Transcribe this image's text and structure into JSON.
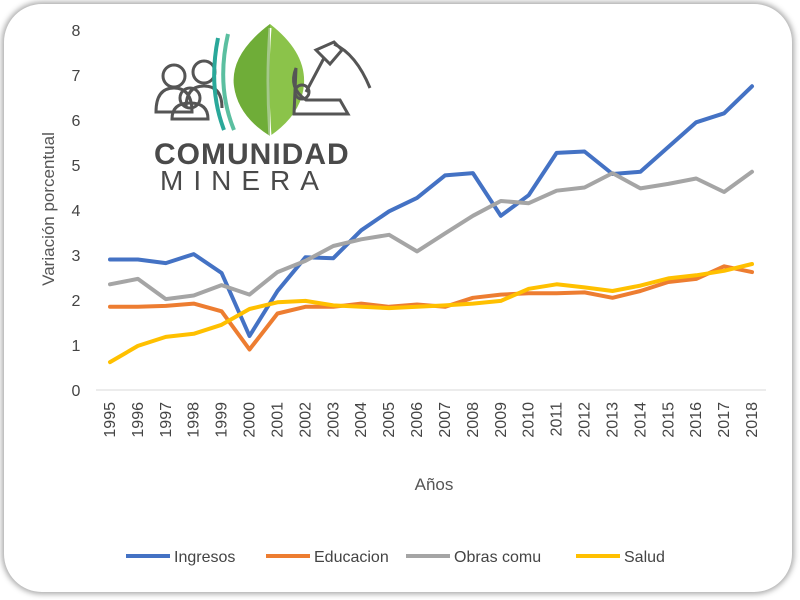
{
  "logo": {
    "line1": "COMUNIDAD",
    "line2": "MINERA",
    "colors": {
      "leaf": "#8bc34a",
      "leaf_dark": "#5a9a2a",
      "teal": "#2aa89a",
      "outline": "#555555"
    },
    "icons": [
      "people-icon",
      "leaf-icon",
      "pickaxe-icon"
    ]
  },
  "chart_data": {
    "type": "line",
    "title": "",
    "xlabel": "Años",
    "ylabel": "Variación porcentual",
    "ylim": [
      0,
      8
    ],
    "yticks": [
      0,
      1,
      2,
      3,
      4,
      5,
      6,
      7,
      8
    ],
    "grid": false,
    "legend_position": "bottom",
    "categories": [
      "1995",
      "1996",
      "1997",
      "1998",
      "1999",
      "2000",
      "2001",
      "2002",
      "2003",
      "2004",
      "2005",
      "2006",
      "2007",
      "2008",
      "2009",
      "2010",
      "2011",
      "2012",
      "2013",
      "2014",
      "2015",
      "2016",
      "2017",
      "2018"
    ],
    "series": [
      {
        "name": "Ingresos",
        "color": "#4472c4",
        "values": [
          2.9,
          2.9,
          2.82,
          3.02,
          2.6,
          1.2,
          2.2,
          2.95,
          2.93,
          3.55,
          3.97,
          4.27,
          4.77,
          4.82,
          3.87,
          4.33,
          5.27,
          5.3,
          4.8,
          4.85,
          5.4,
          5.95,
          6.15,
          6.75
        ]
      },
      {
        "name": "Educacion",
        "color": "#ed7d31",
        "values": [
          1.85,
          1.85,
          1.87,
          1.92,
          1.75,
          0.9,
          1.7,
          1.85,
          1.85,
          1.92,
          1.85,
          1.9,
          1.85,
          2.05,
          2.12,
          2.15,
          2.15,
          2.17,
          2.05,
          2.2,
          2.4,
          2.47,
          2.75,
          2.62
        ]
      },
      {
        "name": "Obras comu",
        "color": "#a5a5a5",
        "values": [
          2.35,
          2.47,
          2.02,
          2.1,
          2.33,
          2.12,
          2.62,
          2.87,
          3.2,
          3.35,
          3.45,
          3.08,
          3.48,
          3.87,
          4.2,
          4.15,
          4.43,
          4.5,
          4.82,
          4.48,
          4.58,
          4.7,
          4.4,
          4.85
        ]
      },
      {
        "name": "Salud",
        "color": "#ffc000",
        "values": [
          0.62,
          0.98,
          1.18,
          1.25,
          1.45,
          1.8,
          1.95,
          1.98,
          1.88,
          1.85,
          1.82,
          1.85,
          1.88,
          1.92,
          1.98,
          2.25,
          2.35,
          2.28,
          2.2,
          2.32,
          2.48,
          2.55,
          2.65,
          2.8
        ]
      }
    ]
  }
}
